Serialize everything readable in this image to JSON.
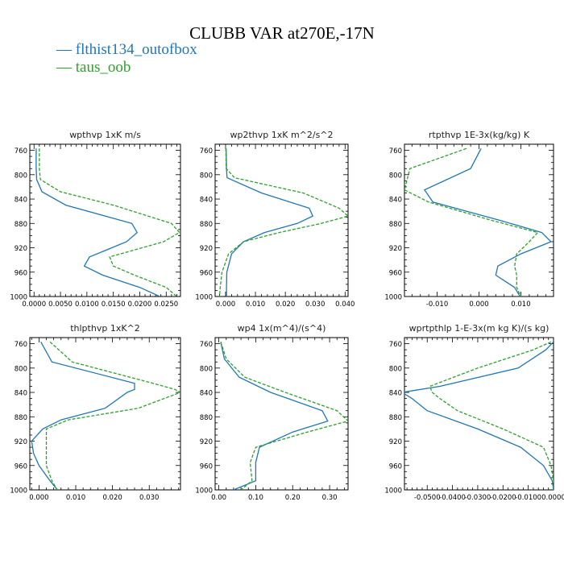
{
  "title": "CLUBB VAR at270E,-17N",
  "legend": [
    {
      "name": "flthist134_outofbox",
      "color": "#1f77b4",
      "style": "solid"
    },
    {
      "name": "taus_oob",
      "color": "#2ca02c",
      "style": "dashed"
    }
  ],
  "chart_data": [
    {
      "type": "line",
      "title": "wpthvp  1xK m/s",
      "xlim": [
        -0.0008,
        0.0277
      ],
      "ylim": [
        1000,
        750
      ],
      "yticks": [
        760,
        800,
        840,
        880,
        920,
        960,
        1000
      ],
      "xticks": [
        0.0,
        0.005,
        0.01,
        0.015,
        0.02,
        0.025
      ],
      "xticklabels": [
        "0.0000",
        "0.0050",
        "0.0100",
        "0.0150",
        "0.0200",
        "0.0250"
      ],
      "y": [
        757,
        770,
        790,
        808,
        828,
        850,
        880,
        895,
        910,
        935,
        950,
        965,
        985,
        1000
      ],
      "series": [
        {
          "name": "flthist134_outofbox",
          "x": [
            0.0004,
            0.0004,
            0.0004,
            0.0005,
            0.0015,
            0.006,
            0.0185,
            0.0195,
            0.0175,
            0.0105,
            0.0095,
            0.013,
            0.02,
            0.0238
          ]
        },
        {
          "name": "taus_oob",
          "x": [
            0.001,
            0.001,
            0.001,
            0.0012,
            0.005,
            0.015,
            0.026,
            0.0275,
            0.0245,
            0.0143,
            0.015,
            0.019,
            0.025,
            0.027
          ]
        }
      ]
    },
    {
      "type": "line",
      "title": "wp2thvp  1xK m^2/s^2",
      "xlim": [
        -0.0035,
        0.041
      ],
      "ylim": [
        1000,
        750
      ],
      "yticks": [
        760,
        800,
        840,
        880,
        920,
        960,
        1000
      ],
      "xticks": [
        0.0,
        0.01,
        0.02,
        0.03,
        0.04
      ],
      "xticklabels": [
        "0.000",
        "0.010",
        "0.020",
        "0.030",
        "0.040"
      ],
      "y": [
        757,
        790,
        805,
        830,
        855,
        868,
        880,
        895,
        910,
        930,
        960,
        985,
        1000
      ],
      "series": [
        {
          "name": "flthist134_outofbox",
          "x": [
            0.0002,
            0.0003,
            0.0005,
            0.012,
            0.028,
            0.0292,
            0.024,
            0.013,
            0.006,
            0.002,
            0.0004,
            0.0003,
            0.0003
          ]
        },
        {
          "name": "taus_oob",
          "x": [
            0.0001,
            0.0002,
            0.003,
            0.026,
            0.038,
            0.041,
            0.032,
            0.018,
            0.006,
            0.001,
            -0.0012,
            -0.0018,
            -0.002
          ]
        }
      ]
    },
    {
      "type": "line",
      "title": "rtpthvp  1E-3x(kg/kg) K",
      "xlim": [
        -0.0178,
        0.0178
      ],
      "ylim": [
        1000,
        750
      ],
      "yticks": [
        760,
        800,
        840,
        880,
        920,
        960,
        1000
      ],
      "xticks": [
        -0.01,
        0.0,
        0.01
      ],
      "xticklabels": [
        "-0.010",
        "0.000",
        "0.010"
      ],
      "y": [
        757,
        790,
        825,
        845,
        875,
        895,
        910,
        930,
        950,
        965,
        985,
        1000
      ],
      "series": [
        {
          "name": "flthist134_outofbox",
          "x": [
            0.0005,
            -0.002,
            -0.013,
            -0.011,
            0.005,
            0.015,
            0.0172,
            0.01,
            0.0045,
            0.004,
            0.0085,
            0.0098
          ]
        },
        {
          "name": "taus_oob",
          "x": [
            -0.003,
            -0.0165,
            -0.0178,
            -0.012,
            0.003,
            0.014,
            0.012,
            0.009,
            0.0085,
            0.009,
            0.009,
            0.01
          ]
        }
      ]
    },
    {
      "type": "line",
      "title": "thlpthvp  1xK^2",
      "xlim": [
        -0.0025,
        0.0385
      ],
      "ylim": [
        1000,
        750
      ],
      "yticks": [
        760,
        800,
        840,
        880,
        920,
        960,
        1000
      ],
      "xticks": [
        0.0,
        0.01,
        0.02,
        0.03
      ],
      "xticklabels": [
        "0.000",
        "0.010",
        "0.020",
        "0.030"
      ],
      "y": [
        757,
        790,
        825,
        835,
        840,
        866,
        885,
        900,
        920,
        940,
        960,
        985,
        1000
      ],
      "series": [
        {
          "name": "flthist134_outofbox",
          "x": [
            0.0005,
            0.0035,
            0.026,
            0.026,
            0.024,
            0.018,
            0.006,
            0.001,
            -0.002,
            -0.0015,
            0.0,
            0.003,
            0.005
          ]
        },
        {
          "name": "taus_oob",
          "x": [
            0.003,
            0.009,
            0.031,
            0.037,
            0.0385,
            0.027,
            0.008,
            0.002,
            0.002,
            0.002,
            0.002,
            0.0035,
            0.005
          ]
        }
      ]
    },
    {
      "type": "line",
      "title": "wp4  1x(m^4)/(s^4)",
      "xlim": [
        -0.01,
        0.35
      ],
      "ylim": [
        1000,
        750
      ],
      "yticks": [
        760,
        800,
        840,
        880,
        920,
        960,
        1000
      ],
      "xticks": [
        0.0,
        0.1,
        0.2,
        0.3
      ],
      "xticklabels": [
        "0.00",
        "0.10",
        "0.20",
        "0.30"
      ],
      "y": [
        757,
        785,
        815,
        840,
        870,
        887,
        905,
        930,
        955,
        985,
        1000
      ],
      "series": [
        {
          "name": "flthist134_outofbox",
          "x": [
            0.005,
            0.015,
            0.055,
            0.14,
            0.28,
            0.295,
            0.2,
            0.11,
            0.1,
            0.1,
            0.04
          ]
        },
        {
          "name": "taus_oob",
          "x": [
            0.005,
            0.02,
            0.07,
            0.18,
            0.32,
            0.35,
            0.24,
            0.1,
            0.085,
            0.09,
            0.06
          ]
        }
      ]
    },
    {
      "type": "line",
      "title": "wprtpthlp  1-E-3x(m kg K)/(s kg)",
      "xlim": [
        -0.059,
        0.0
      ],
      "ylim": [
        1000,
        750
      ],
      "yticks": [
        760,
        800,
        840,
        880,
        920,
        960,
        1000
      ],
      "xticks": [
        -0.05,
        -0.04,
        -0.03,
        -0.02,
        -0.01,
        0.0
      ],
      "xticklabels": [
        "-0.0500",
        "-0.0400",
        "-0.0300",
        "-0.0200",
        "-0.0100",
        "0.0000"
      ],
      "y": [
        757,
        770,
        800,
        830,
        840,
        850,
        870,
        900,
        930,
        960,
        985,
        1000
      ],
      "series": [
        {
          "name": "flthist134_outofbox",
          "x": [
            0.0,
            -0.003,
            -0.014,
            -0.045,
            -0.06,
            -0.056,
            -0.05,
            -0.03,
            -0.013,
            -0.004,
            -0.0005,
            0.0
          ]
        },
        {
          "name": "taus_oob",
          "x": [
            -0.001,
            -0.008,
            -0.03,
            -0.049,
            -0.048,
            -0.045,
            -0.038,
            -0.02,
            -0.004,
            -0.001,
            0.0,
            0.0
          ]
        }
      ]
    }
  ]
}
